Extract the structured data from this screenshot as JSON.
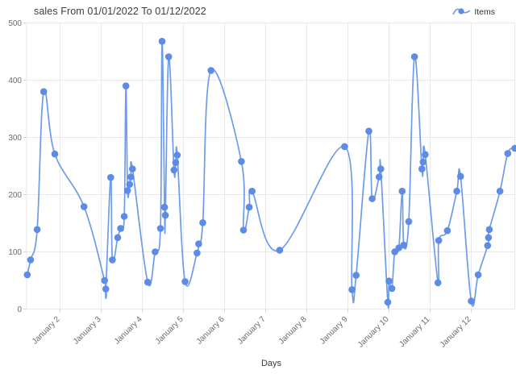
{
  "chart_data": {
    "type": "line",
    "title": "sales From 01/01/2022 To 01/12/2022",
    "legend_label": "Items",
    "legend_position": "top-right",
    "xlabel": "Days",
    "grid": true,
    "ylim": [
      0,
      500
    ],
    "y_ticks": [
      0,
      100,
      200,
      300,
      400,
      500
    ],
    "x_range_days": [
      1.184,
      13.06
    ],
    "x_ticks": [
      {
        "day": 2,
        "label": "January 2"
      },
      {
        "day": 3,
        "label": "January 3"
      },
      {
        "day": 4,
        "label": "January 4"
      },
      {
        "day": 5,
        "label": "January 5"
      },
      {
        "day": 6,
        "label": "January 6"
      },
      {
        "day": 7,
        "label": "January 7"
      },
      {
        "day": 8,
        "label": "January 8"
      },
      {
        "day": 9,
        "label": "January 9"
      },
      {
        "day": 10,
        "label": "January 10"
      },
      {
        "day": 11,
        "label": "January 11"
      },
      {
        "day": 12,
        "label": "January 12"
      }
    ],
    "colors": {
      "line": "#6E9BEA",
      "point": "#5E8CE4",
      "grid": "#e9e9e9",
      "tick": "#d5d5d5",
      "tick_text": "#6b6b6b",
      "title_text": "#3d3d3d",
      "axis_title_text": "#3a3a3a"
    },
    "series": [
      {
        "name": "Items",
        "points": [
          [
            1.2,
            60
          ],
          [
            1.28,
            86
          ],
          [
            1.44,
            139
          ],
          [
            1.6,
            380
          ],
          [
            1.87,
            271
          ],
          [
            2.58,
            179
          ],
          [
            3.08,
            50
          ],
          [
            3.11,
            35
          ],
          [
            3.23,
            230
          ],
          [
            3.27,
            86
          ],
          [
            3.4,
            125
          ],
          [
            3.47,
            141
          ],
          [
            3.56,
            162
          ],
          [
            3.6,
            390
          ],
          [
            3.64,
            207
          ],
          [
            3.69,
            218
          ],
          [
            3.72,
            231
          ],
          [
            3.76,
            245
          ],
          [
            4.13,
            47
          ],
          [
            4.31,
            100
          ],
          [
            4.44,
            141
          ],
          [
            4.48,
            468
          ],
          [
            4.54,
            178
          ],
          [
            4.56,
            164
          ],
          [
            4.64,
            441
          ],
          [
            4.77,
            243
          ],
          [
            4.81,
            256
          ],
          [
            4.85,
            269
          ],
          [
            5.04,
            48
          ],
          [
            5.33,
            98
          ],
          [
            5.37,
            114
          ],
          [
            5.47,
            151
          ],
          [
            5.67,
            417
          ],
          [
            6.41,
            258
          ],
          [
            6.46,
            138
          ],
          [
            6.6,
            178
          ],
          [
            6.67,
            206
          ],
          [
            7.34,
            103
          ],
          [
            8.92,
            284
          ],
          [
            9.1,
            34
          ],
          [
            9.2,
            59
          ],
          [
            9.51,
            311
          ],
          [
            9.59,
            193
          ],
          [
            9.76,
            231
          ],
          [
            9.8,
            245
          ],
          [
            9.97,
            12
          ],
          [
            10.0,
            49
          ],
          [
            10.07,
            36
          ],
          [
            10.14,
            100
          ],
          [
            10.24,
            107
          ],
          [
            10.32,
            206
          ],
          [
            10.36,
            112
          ],
          [
            10.48,
            153
          ],
          [
            10.62,
            441
          ],
          [
            10.8,
            245
          ],
          [
            10.83,
            257
          ],
          [
            10.88,
            270
          ],
          [
            11.19,
            46
          ],
          [
            11.21,
            120
          ],
          [
            11.42,
            137
          ],
          [
            11.65,
            206
          ],
          [
            11.74,
            232
          ],
          [
            12.0,
            14
          ],
          [
            12.17,
            60
          ],
          [
            12.4,
            111
          ],
          [
            12.42,
            125
          ],
          [
            12.44,
            139
          ],
          [
            12.7,
            206
          ],
          [
            12.89,
            272
          ],
          [
            13.06,
            281
          ]
        ]
      }
    ]
  }
}
